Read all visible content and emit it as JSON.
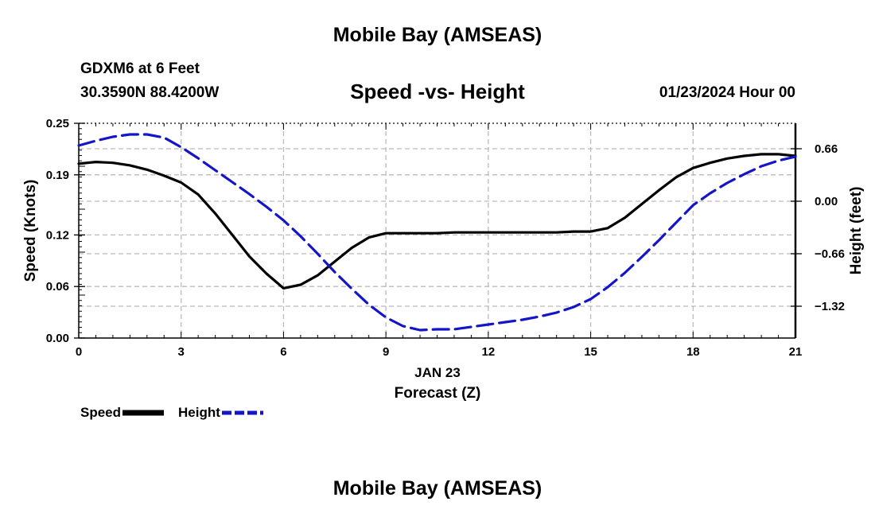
{
  "header": {
    "title": "Mobile Bay (AMSEAS)",
    "station": "GDXM6 at 6 Feet",
    "coords": "30.3590N  88.4200W",
    "subtitle": "Speed -vs- Height",
    "datetime": "01/23/2024 Hour 00"
  },
  "footer": {
    "title": "Mobile Bay (AMSEAS)"
  },
  "legend": {
    "speed_label": "Speed",
    "height_label": "Height"
  },
  "chart_data": {
    "type": "line",
    "x": [
      0,
      0.5,
      1,
      1.5,
      2,
      2.5,
      3,
      3.5,
      4,
      4.5,
      5,
      5.5,
      6,
      6.5,
      7,
      7.5,
      8,
      8.5,
      9,
      9.5,
      10,
      10.5,
      11,
      11.5,
      12,
      12.5,
      13,
      13.5,
      14,
      14.5,
      15,
      15.5,
      16,
      16.5,
      17,
      17.5,
      18,
      18.5,
      19,
      19.5,
      20,
      20.5,
      21
    ],
    "xlabel_date": "JAN 23",
    "xlabel": "Forecast (Z)",
    "xlim": [
      0,
      21
    ],
    "xticks": [
      0,
      3,
      6,
      9,
      12,
      15,
      18,
      21
    ],
    "ylabel_left": "Speed (Knots)",
    "ylim_left": [
      0,
      0.25
    ],
    "yticks_left": [
      0.0,
      0.06,
      0.12,
      0.19,
      0.25
    ],
    "yticks_left_labels": [
      "0.00",
      "0.06",
      "0.12",
      "0.19",
      "0.25"
    ],
    "ylabel_right": "Height (feet)",
    "ylim_right": [
      -1.72,
      0.98
    ],
    "yticks_right": [
      0.66,
      0.0,
      -0.66,
      -1.32
    ],
    "yticks_right_labels": [
      "0.66",
      "0.00",
      "−0.66",
      "−1.32"
    ],
    "grid": true,
    "legend_position": "bottom-left",
    "series": [
      {
        "name": "Speed",
        "axis": "left",
        "color": "#000000",
        "dash": false,
        "values": [
          0.203,
          0.205,
          0.204,
          0.201,
          0.196,
          0.189,
          0.181,
          0.167,
          0.145,
          0.12,
          0.095,
          0.075,
          0.058,
          0.062,
          0.073,
          0.089,
          0.105,
          0.117,
          0.122,
          0.122,
          0.122,
          0.122,
          0.123,
          0.123,
          0.123,
          0.123,
          0.123,
          0.123,
          0.123,
          0.124,
          0.124,
          0.128,
          0.14,
          0.156,
          0.172,
          0.187,
          0.198,
          0.204,
          0.209,
          0.212,
          0.214,
          0.214,
          0.212
        ]
      },
      {
        "name": "Height",
        "axis": "right",
        "color": "#1515c8",
        "dash": true,
        "values": [
          0.7,
          0.76,
          0.81,
          0.84,
          0.84,
          0.8,
          0.68,
          0.54,
          0.39,
          0.24,
          0.09,
          -0.07,
          -0.24,
          -0.44,
          -0.66,
          -0.89,
          -1.1,
          -1.3,
          -1.46,
          -1.57,
          -1.62,
          -1.61,
          -1.61,
          -1.58,
          -1.55,
          -1.52,
          -1.49,
          -1.45,
          -1.4,
          -1.33,
          -1.23,
          -1.08,
          -0.9,
          -0.7,
          -0.49,
          -0.27,
          -0.05,
          0.1,
          0.23,
          0.34,
          0.44,
          0.51,
          0.56
        ]
      }
    ]
  }
}
